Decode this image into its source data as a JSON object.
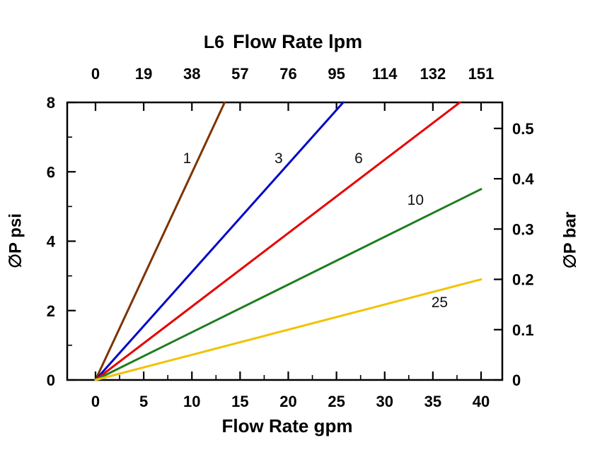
{
  "title": {
    "prefix": "L6",
    "main": "Flow Rate lpm"
  },
  "axes": {
    "bottom_label": "Flow Rate gpm",
    "left_label": "∅P psi",
    "right_label": "∅P bar"
  },
  "chart_data": {
    "type": "line",
    "title": "L6 Flow Rate lpm",
    "xlabel": "Flow Rate gpm",
    "xlabel_top": "Flow Rate lpm",
    "ylabel": "∅P psi",
    "ylabel_right": "∅P bar",
    "xlim": [
      0,
      40
    ],
    "ylim": [
      0,
      8
    ],
    "x_ticks_gpm": [
      0,
      5,
      10,
      15,
      20,
      25,
      30,
      35,
      40
    ],
    "x_ticks_top_lpm": [
      "0",
      "19",
      "38",
      "57",
      "76",
      "95",
      "114",
      "132",
      "151"
    ],
    "x_minor_ticks_gpm": [
      2.5,
      7.5,
      12.5,
      17.5,
      22.5,
      27.5,
      32.5,
      37.5
    ],
    "y_ticks_psi": [
      0,
      2,
      4,
      6,
      8
    ],
    "y_minor_ticks_psi": [
      1,
      3,
      5,
      7
    ],
    "y_ticks_right_bar": [
      "0",
      "0.1",
      "0.2",
      "0.3",
      "0.4",
      "0.5"
    ],
    "psi_per_bar": 14.5,
    "grid": false,
    "legend": "labels-on-lines",
    "frame_color": "#000000",
    "series": [
      {
        "name": "1",
        "color": "#7C3400",
        "points": [
          [
            0,
            0
          ],
          [
            13.4,
            8
          ]
        ],
        "label_at": [
          9.5,
          6.25
        ]
      },
      {
        "name": "3",
        "color": "#0008C8",
        "points": [
          [
            0,
            0
          ],
          [
            25.7,
            8
          ]
        ],
        "label_at": [
          19.0,
          6.25
        ]
      },
      {
        "name": "6",
        "color": "#E60000",
        "points": [
          [
            0,
            0
          ],
          [
            37.8,
            8
          ]
        ],
        "label_at": [
          27.3,
          6.25
        ]
      },
      {
        "name": "10",
        "color": "#1E7D1E",
        "points": [
          [
            0,
            0
          ],
          [
            40,
            5.5
          ]
        ],
        "label_at": [
          33.2,
          5.05
        ]
      },
      {
        "name": "25",
        "color": "#F2C200",
        "points": [
          [
            0,
            0
          ],
          [
            40,
            2.9
          ]
        ],
        "label_at": [
          35.7,
          2.1
        ]
      }
    ]
  }
}
